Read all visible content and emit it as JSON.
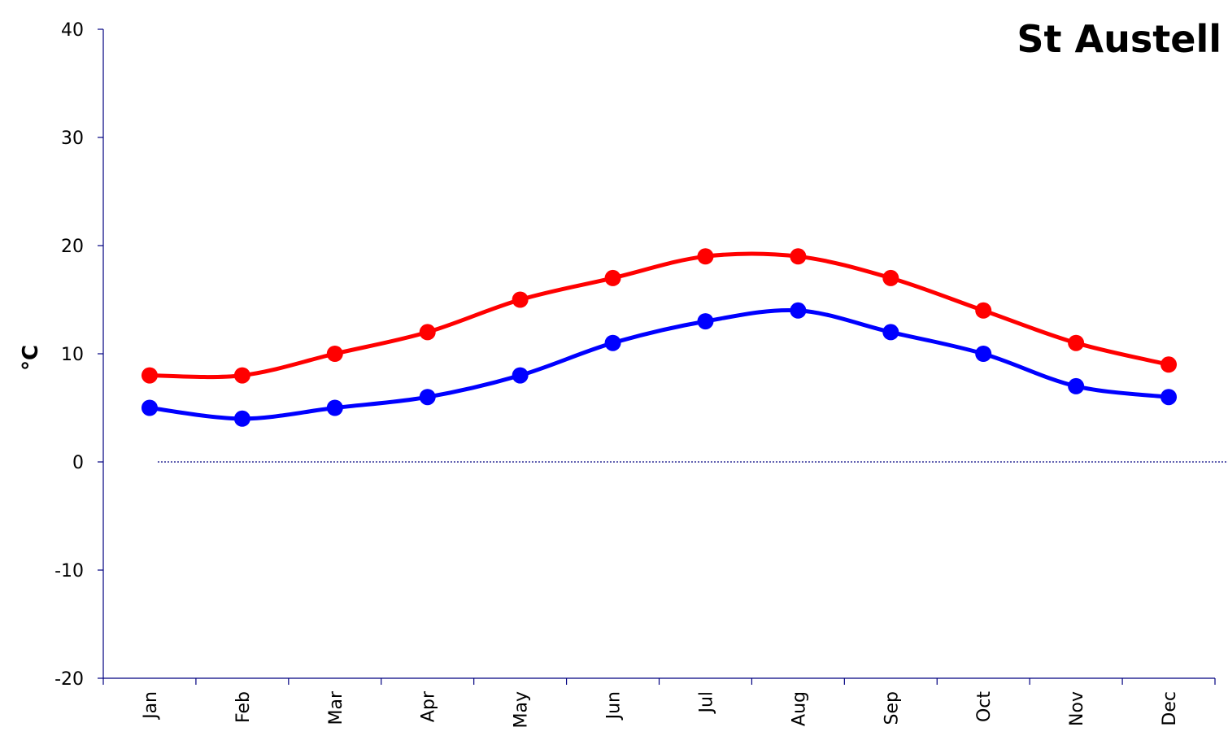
{
  "chart_data": {
    "type": "line",
    "title": "St Austell",
    "ylabel": "°C",
    "xlabel": "",
    "categories": [
      "Jan",
      "Feb",
      "Mar",
      "Apr",
      "May",
      "Jun",
      "Jul",
      "Aug",
      "Sep",
      "Oct",
      "Nov",
      "Dec"
    ],
    "series": [
      {
        "values": [
          8,
          8,
          10,
          12,
          15,
          17,
          19,
          19,
          17,
          14,
          11,
          9
        ],
        "color": "#ff0000"
      },
      {
        "values": [
          5,
          4,
          5,
          6,
          8,
          11,
          13,
          14,
          12,
          10,
          7,
          6
        ],
        "color": "#0000ff"
      }
    ],
    "ylim": [
      -20,
      40
    ],
    "yticks": [
      -20,
      -10,
      0,
      10,
      20,
      30,
      40
    ],
    "zero_line": "dotted",
    "grid": false,
    "axis_color": "#000080",
    "smooth": true
  }
}
